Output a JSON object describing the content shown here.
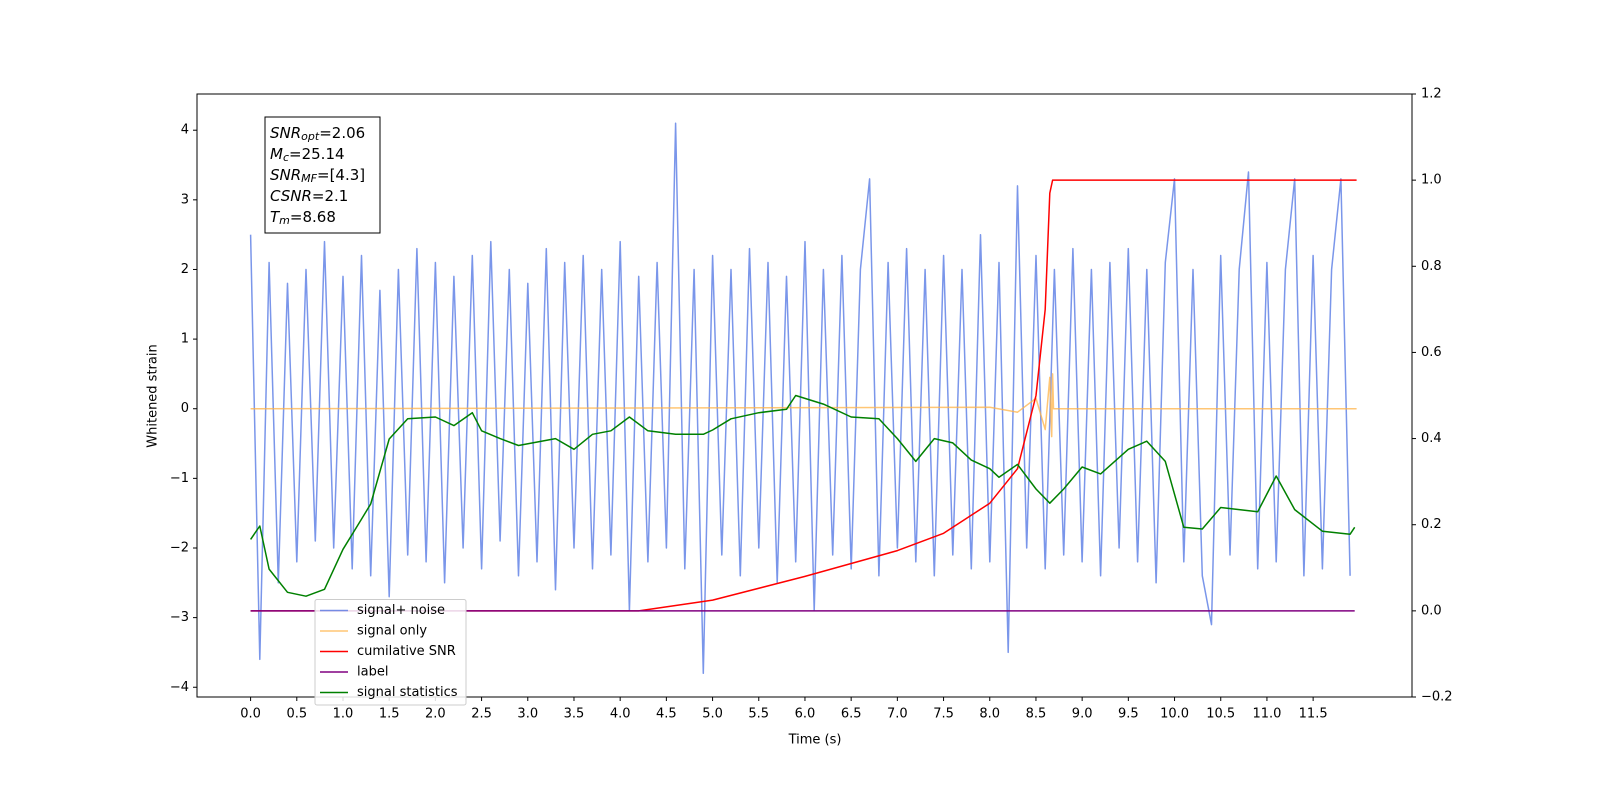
{
  "chart_data": {
    "type": "line",
    "xlabel": "Time (s)",
    "ylabel": "Whitened strain",
    "xlim": [
      -0.58,
      12.57
    ],
    "ylim": [
      -4.14,
      4.52
    ],
    "y2lim": [
      -0.2,
      1.2
    ],
    "xticks": [
      {
        "value": 0,
        "label": "0.0"
      },
      {
        "value": 0.5,
        "label": "0.5"
      },
      {
        "value": 1,
        "label": "1.0"
      },
      {
        "value": 1.5,
        "label": "1.5"
      },
      {
        "value": 2,
        "label": "2.0"
      },
      {
        "value": 2.5,
        "label": "2.5"
      },
      {
        "value": 3,
        "label": "3.0"
      },
      {
        "value": 3.5,
        "label": "3.5"
      },
      {
        "value": 4,
        "label": "4.0"
      },
      {
        "value": 4.5,
        "label": "4.5"
      },
      {
        "value": 5,
        "label": "5.0"
      },
      {
        "value": 5.5,
        "label": "5.5"
      },
      {
        "value": 6,
        "label": "6.0"
      },
      {
        "value": 6.5,
        "label": "6.5"
      },
      {
        "value": 7,
        "label": "7.0"
      },
      {
        "value": 7.5,
        "label": "7.5"
      },
      {
        "value": 8,
        "label": "8.0"
      },
      {
        "value": 8.5,
        "label": "8.5"
      },
      {
        "value": 9,
        "label": "9.0"
      },
      {
        "value": 9.5,
        "label": "9.5"
      },
      {
        "value": 10,
        "label": "10.0"
      },
      {
        "value": 10.5,
        "label": "10.5"
      },
      {
        "value": 11,
        "label": "11.0"
      },
      {
        "value": 11.5,
        "label": "11.5"
      }
    ],
    "yticks": [
      {
        "value": -4,
        "label": "−4"
      },
      {
        "value": -3,
        "label": "−3"
      },
      {
        "value": -2,
        "label": "−2"
      },
      {
        "value": -1,
        "label": "−1"
      },
      0,
      1,
      2,
      3,
      4
    ],
    "y2ticks": [
      {
        "value": -0.2,
        "label": "−0.2"
      },
      {
        "value": 0,
        "label": "0.0"
      },
      0.2,
      0.4,
      0.6,
      0.8,
      {
        "value": 1,
        "label": "1.0"
      },
      1.2
    ],
    "legend_loc": "lower left",
    "annotations": [
      {
        "main": "SNR",
        "sub": "opt",
        "text": "=2.06"
      },
      {
        "main": "M",
        "sub": "c",
        "text": "=25.14"
      },
      {
        "main": "SNR",
        "sub": "MF",
        "text": "=[4.3]"
      },
      {
        "main": "CSNR",
        "text": "=2.1"
      },
      {
        "main": "T",
        "sub": "m",
        "text": "=8.68"
      }
    ],
    "series": [
      {
        "name": "signal+ noise",
        "color": "#4169e1",
        "opacity": 0.7,
        "x": [
          0,
          0.1,
          0.2,
          0.3,
          0.4,
          0.5,
          0.6,
          0.7,
          0.8,
          0.9,
          1,
          1.1,
          1.2,
          1.3,
          1.4,
          1.5,
          1.6,
          1.7,
          1.8,
          1.9,
          2,
          2.1,
          2.2,
          2.3,
          2.4,
          2.5,
          2.6,
          2.7,
          2.8,
          2.9,
          3,
          3.1,
          3.2,
          3.3,
          3.4,
          3.5,
          3.6,
          3.7,
          3.8,
          3.9,
          4,
          4.1,
          4.2,
          4.3,
          4.4,
          4.5,
          4.6,
          4.7,
          4.8,
          4.9,
          5,
          5.1,
          5.2,
          5.3,
          5.4,
          5.5,
          5.6,
          5.7,
          5.8,
          5.9,
          6,
          6.1,
          6.2,
          6.3,
          6.4,
          6.5,
          6.6,
          6.7,
          6.8,
          6.9,
          7,
          7.1,
          7.2,
          7.3,
          7.4,
          7.5,
          7.6,
          7.7,
          7.8,
          7.9,
          8,
          8.1,
          8.2,
          8.3,
          8.4,
          8.5,
          8.6,
          8.7,
          8.8,
          8.9,
          9,
          9.1,
          9.2,
          9.3,
          9.4,
          9.5,
          9.6,
          9.7,
          9.8,
          9.9,
          10,
          10.1,
          10.2,
          10.3,
          10.4,
          10.5,
          10.6,
          10.7,
          10.8,
          10.9,
          11,
          11.1,
          11.2,
          11.3,
          11.4,
          11.5,
          11.6,
          11.7,
          11.8,
          11.9
        ],
        "values": [
          2.5,
          -3.6,
          2.1,
          -2.5,
          1.8,
          -2.2,
          2.0,
          -1.9,
          2.4,
          -2.0,
          1.9,
          -2.3,
          2.2,
          -2.4,
          1.7,
          -2.7,
          2.0,
          -2.1,
          2.3,
          -2.2,
          2.1,
          -2.5,
          1.9,
          -2.0,
          2.2,
          -2.3,
          2.4,
          -1.9,
          2.0,
          -2.4,
          1.8,
          -2.2,
          2.3,
          -2.6,
          2.1,
          -2.0,
          2.2,
          -2.3,
          2.0,
          -2.1,
          2.4,
          -2.9,
          1.9,
          -2.2,
          2.1,
          -2.0,
          4.1,
          -2.3,
          2.0,
          -3.8,
          2.2,
          -2.1,
          2.0,
          -2.4,
          2.3,
          -2.0,
          2.1,
          -2.5,
          1.9,
          -2.2,
          2.4,
          -2.9,
          2.0,
          -2.1,
          2.2,
          -2.3,
          2.0,
          3.3,
          -2.4,
          2.1,
          -2.0,
          2.3,
          -2.2,
          2.0,
          -2.4,
          2.2,
          -2.1,
          2.0,
          -2.3,
          2.5,
          -2.2,
          2.1,
          -3.5,
          3.2,
          -2.0,
          2.2,
          -2.3,
          2.0,
          -2.1,
          2.3,
          -2.2,
          2.0,
          -2.4,
          2.1,
          -2.0,
          2.3,
          -2.2,
          2.0,
          -2.5,
          2.1,
          3.3,
          -2.2,
          2.0,
          -2.4,
          -3.1,
          2.2,
          -2.1,
          2.0,
          3.4,
          -2.3,
          2.1,
          -2.2,
          2.0,
          3.3,
          -2.4,
          2.2,
          -2.3,
          2.0,
          3.3,
          -2.4
        ]
      },
      {
        "name": "signal only",
        "color": "#ffb347",
        "opacity": 0.75,
        "x": [
          0,
          8.0,
          8.3,
          8.5,
          8.6,
          8.65,
          8.67,
          8.68,
          8.69,
          11.97
        ],
        "values": [
          0,
          0.02,
          -0.05,
          0.15,
          -0.3,
          0.45,
          -0.4,
          0.5,
          0,
          0
        ]
      },
      {
        "name": "cumilative SNR",
        "color": "#ff0000",
        "axis": "y2",
        "x": [
          0,
          4.2,
          5.0,
          6.0,
          7.0,
          7.5,
          8.0,
          8.3,
          8.5,
          8.6,
          8.65,
          8.68,
          11.97
        ],
        "values": [
          0,
          0,
          0.025,
          0.08,
          0.14,
          0.18,
          0.25,
          0.33,
          0.5,
          0.7,
          0.97,
          1.0,
          1.0
        ]
      },
      {
        "name": "label",
        "color": "#800080",
        "axis": "y2",
        "x": [
          0,
          11.95
        ],
        "values": [
          0,
          0
        ]
      },
      {
        "name": "signal statistics",
        "color": "#008000",
        "axis": "y2",
        "x": [
          0,
          0.1,
          0.2,
          0.4,
          0.6,
          0.8,
          1.0,
          1.2,
          1.3,
          1.5,
          1.7,
          2.0,
          2.2,
          2.4,
          2.5,
          2.7,
          2.9,
          3.3,
          3.5,
          3.7,
          3.9,
          4.1,
          4.3,
          4.6,
          4.9,
          5.0,
          5.2,
          5.5,
          5.8,
          5.9,
          6.2,
          6.5,
          6.8,
          7.0,
          7.2,
          7.4,
          7.6,
          7.8,
          8.0,
          8.1,
          8.3,
          8.5,
          8.65,
          8.8,
          9.0,
          9.2,
          9.5,
          9.7,
          9.9,
          10.1,
          10.3,
          10.5,
          10.7,
          10.9,
          11.1,
          11.3,
          11.6,
          11.9,
          11.95
        ],
        "values": [
          0.166,
          0.197,
          0.097,
          0.043,
          0.034,
          0.05,
          0.143,
          0.213,
          0.248,
          0.399,
          0.446,
          0.45,
          0.43,
          0.46,
          0.418,
          0.4,
          0.384,
          0.4,
          0.375,
          0.41,
          0.418,
          0.45,
          0.418,
          0.41,
          0.41,
          0.42,
          0.446,
          0.46,
          0.468,
          0.5,
          0.48,
          0.45,
          0.446,
          0.4,
          0.347,
          0.4,
          0.39,
          0.35,
          0.33,
          0.31,
          0.34,
          0.283,
          0.25,
          0.283,
          0.334,
          0.318,
          0.375,
          0.394,
          0.347,
          0.194,
          0.19,
          0.24,
          0.235,
          0.23,
          0.313,
          0.235,
          0.185,
          0.178,
          0.194
        ]
      }
    ]
  }
}
